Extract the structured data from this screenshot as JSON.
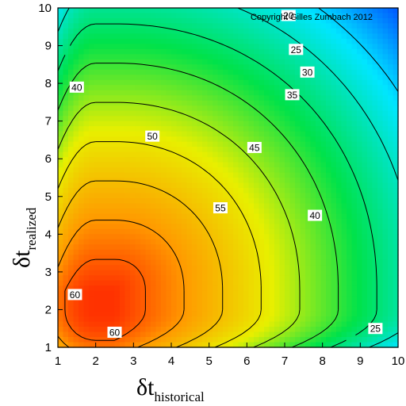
{
  "chart_data": {
    "type": "heatmap",
    "subtype": "filled-contour",
    "copyright": "Copyright Gilles Zumbach 2012",
    "xlabel": {
      "main": "δt",
      "sub": "historical"
    },
    "ylabel": {
      "main": "δt",
      "sub": "realized"
    },
    "xlim": [
      1,
      10
    ],
    "ylim": [
      1,
      10
    ],
    "xticks": [
      "1",
      "2",
      "3",
      "4",
      "5",
      "6",
      "7",
      "8",
      "9",
      "10"
    ],
    "yticks": [
      "1",
      "2",
      "3",
      "4",
      "5",
      "6",
      "7",
      "8",
      "9",
      "10"
    ],
    "colormap": [
      "#0018ff",
      "#00e6ff",
      "#00e24a",
      "#e8ef00",
      "#ff9a00",
      "#ff1b00"
    ],
    "color_range": [
      10,
      66
    ],
    "contour_levels": [
      20,
      25,
      30,
      35,
      40,
      45,
      50,
      55,
      60
    ],
    "contour_labels": [
      {
        "text": "60",
        "x": 1.45,
        "y": 2.4
      },
      {
        "text": "60",
        "x": 2.5,
        "y": 1.4
      },
      {
        "text": "55",
        "x": 5.3,
        "y": 4.7
      },
      {
        "text": "50",
        "x": 3.5,
        "y": 6.6
      },
      {
        "text": "45",
        "x": 6.2,
        "y": 6.3
      },
      {
        "text": "40",
        "x": 1.5,
        "y": 7.9
      },
      {
        "text": "40",
        "x": 7.8,
        "y": 4.5
      },
      {
        "text": "35",
        "x": 7.2,
        "y": 7.7
      },
      {
        "text": "30",
        "x": 7.6,
        "y": 8.3
      },
      {
        "text": "25",
        "x": 7.3,
        "y": 8.9
      },
      {
        "text": "25",
        "x": 9.4,
        "y": 1.5
      },
      {
        "text": "20",
        "x": 7.1,
        "y": 9.8
      }
    ],
    "grid": false,
    "legend": "none"
  },
  "colors": {
    "frame": "#000000",
    "contour_line": "#000000",
    "label_bg": "#ffffff"
  }
}
